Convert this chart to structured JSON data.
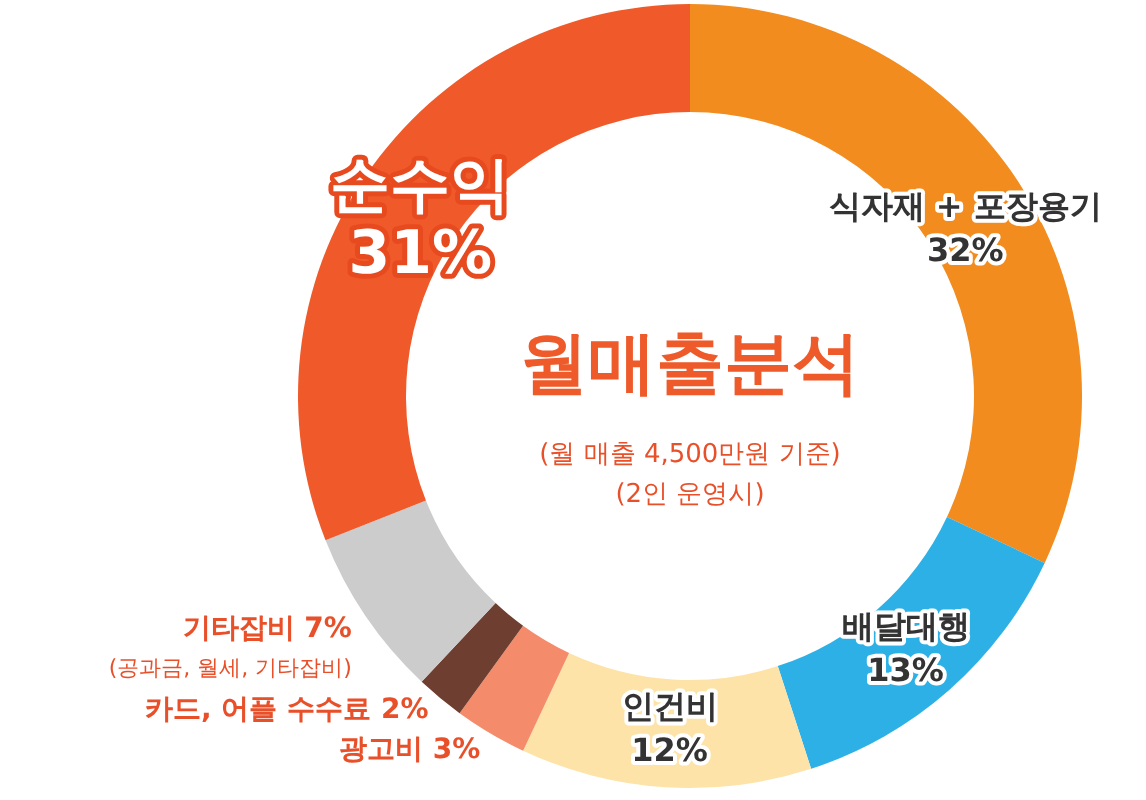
{
  "chart_data": {
    "type": "donut",
    "title": "월매출분석",
    "subtitle": "(월 매출 4,500만원 기준)",
    "annotations": [
      "(2인 운영시)",
      {
        "text": "(공과금, 월세, 기타잡비)",
        "x": "기타잡비"
      }
    ],
    "categories": [
      "식자재 + 포장용기",
      "배달대행",
      "인건비",
      "광고비",
      "카드, 어플 수수료",
      "기타잡비",
      "순수익"
    ],
    "values": [
      32,
      13,
      12,
      3,
      2,
      7,
      31
    ],
    "colors": [
      "#f28c1e",
      "#2db0e6",
      "#fde3a7",
      "#f48b6b",
      "#6e3e30",
      "#cccccc",
      "#f05a2a"
    ],
    "value_labels": [
      "32%",
      "13%",
      "12%",
      "3%",
      "2%",
      "7%",
      "31%"
    ]
  }
}
